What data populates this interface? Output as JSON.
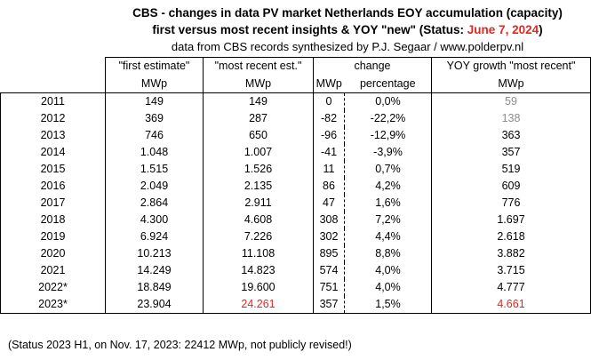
{
  "title": {
    "line1": "CBS - changes in data PV market Netherlands EOY accumulation (capacity)",
    "line2_prefix": "first versus most recent insights & YOY \"new\" (Status: ",
    "line2_status": "June 7, 2024",
    "line2_suffix": ")",
    "line3": "data from CBS records synthesized by P.J. Segaar / www.polderpv.nl"
  },
  "headers": {
    "first_estimate": "\"first estimate\"",
    "most_recent": "\"most recent est.\"",
    "change": "change",
    "yoy": "YOY growth \"most recent\"",
    "unit_first": "MWp",
    "unit_recent": "MWp",
    "unit_change": "MWp",
    "unit_percentage": "percentage",
    "unit_yoy": "MWp"
  },
  "rows": [
    {
      "year": "2011",
      "first": "149",
      "recent": "149",
      "change_mwp": "0",
      "change_pct": "0,0%",
      "yoy": "59"
    },
    {
      "year": "2012",
      "first": "369",
      "recent": "287",
      "change_mwp": "-82",
      "change_pct": "-22,2%",
      "yoy": "138"
    },
    {
      "year": "2013",
      "first": "746",
      "recent": "650",
      "change_mwp": "-96",
      "change_pct": "-12,9%",
      "yoy": "363"
    },
    {
      "year": "2014",
      "first": "1.048",
      "recent": "1.007",
      "change_mwp": "-41",
      "change_pct": "-3,9%",
      "yoy": "357"
    },
    {
      "year": "2015",
      "first": "1.515",
      "recent": "1.526",
      "change_mwp": "11",
      "change_pct": "0,7%",
      "yoy": "519"
    },
    {
      "year": "2016",
      "first": "2.049",
      "recent": "2.135",
      "change_mwp": "86",
      "change_pct": "4,2%",
      "yoy": "609"
    },
    {
      "year": "2017",
      "first": "2.864",
      "recent": "2.911",
      "change_mwp": "47",
      "change_pct": "1,6%",
      "yoy": "776"
    },
    {
      "year": "2018",
      "first": "4.300",
      "recent": "4.608",
      "change_mwp": "308",
      "change_pct": "7,2%",
      "yoy": "1.697"
    },
    {
      "year": "2019",
      "first": "6.924",
      "recent": "7.226",
      "change_mwp": "302",
      "change_pct": "4,4%",
      "yoy": "2.618"
    },
    {
      "year": "2020",
      "first": "10.213",
      "recent": "11.108",
      "change_mwp": "895",
      "change_pct": "8,8%",
      "yoy": "3.882"
    },
    {
      "year": "2021",
      "first": "14.249",
      "recent": "14.823",
      "change_mwp": "574",
      "change_pct": "4,0%",
      "yoy": "3.715"
    },
    {
      "year": "2022*",
      "first": "18.849",
      "recent": "19.600",
      "change_mwp": "751",
      "change_pct": "4,0%",
      "yoy": "4.777"
    },
    {
      "year": "2023*",
      "first": "23.904",
      "recent": "24.261",
      "change_mwp": "357",
      "change_pct": "1,5%",
      "yoy": "4.661"
    }
  ],
  "colors": {
    "accent_red": "#e8251d",
    "muted_grey": "#8c8c8c",
    "grey_yoy_years": [
      "2011",
      "2012"
    ],
    "red_cells_2023": [
      "recent",
      "yoy"
    ]
  },
  "footnote": "(Status 2023 H1, on Nov. 17, 2023: 22412 MWp, not publicly revised!)"
}
